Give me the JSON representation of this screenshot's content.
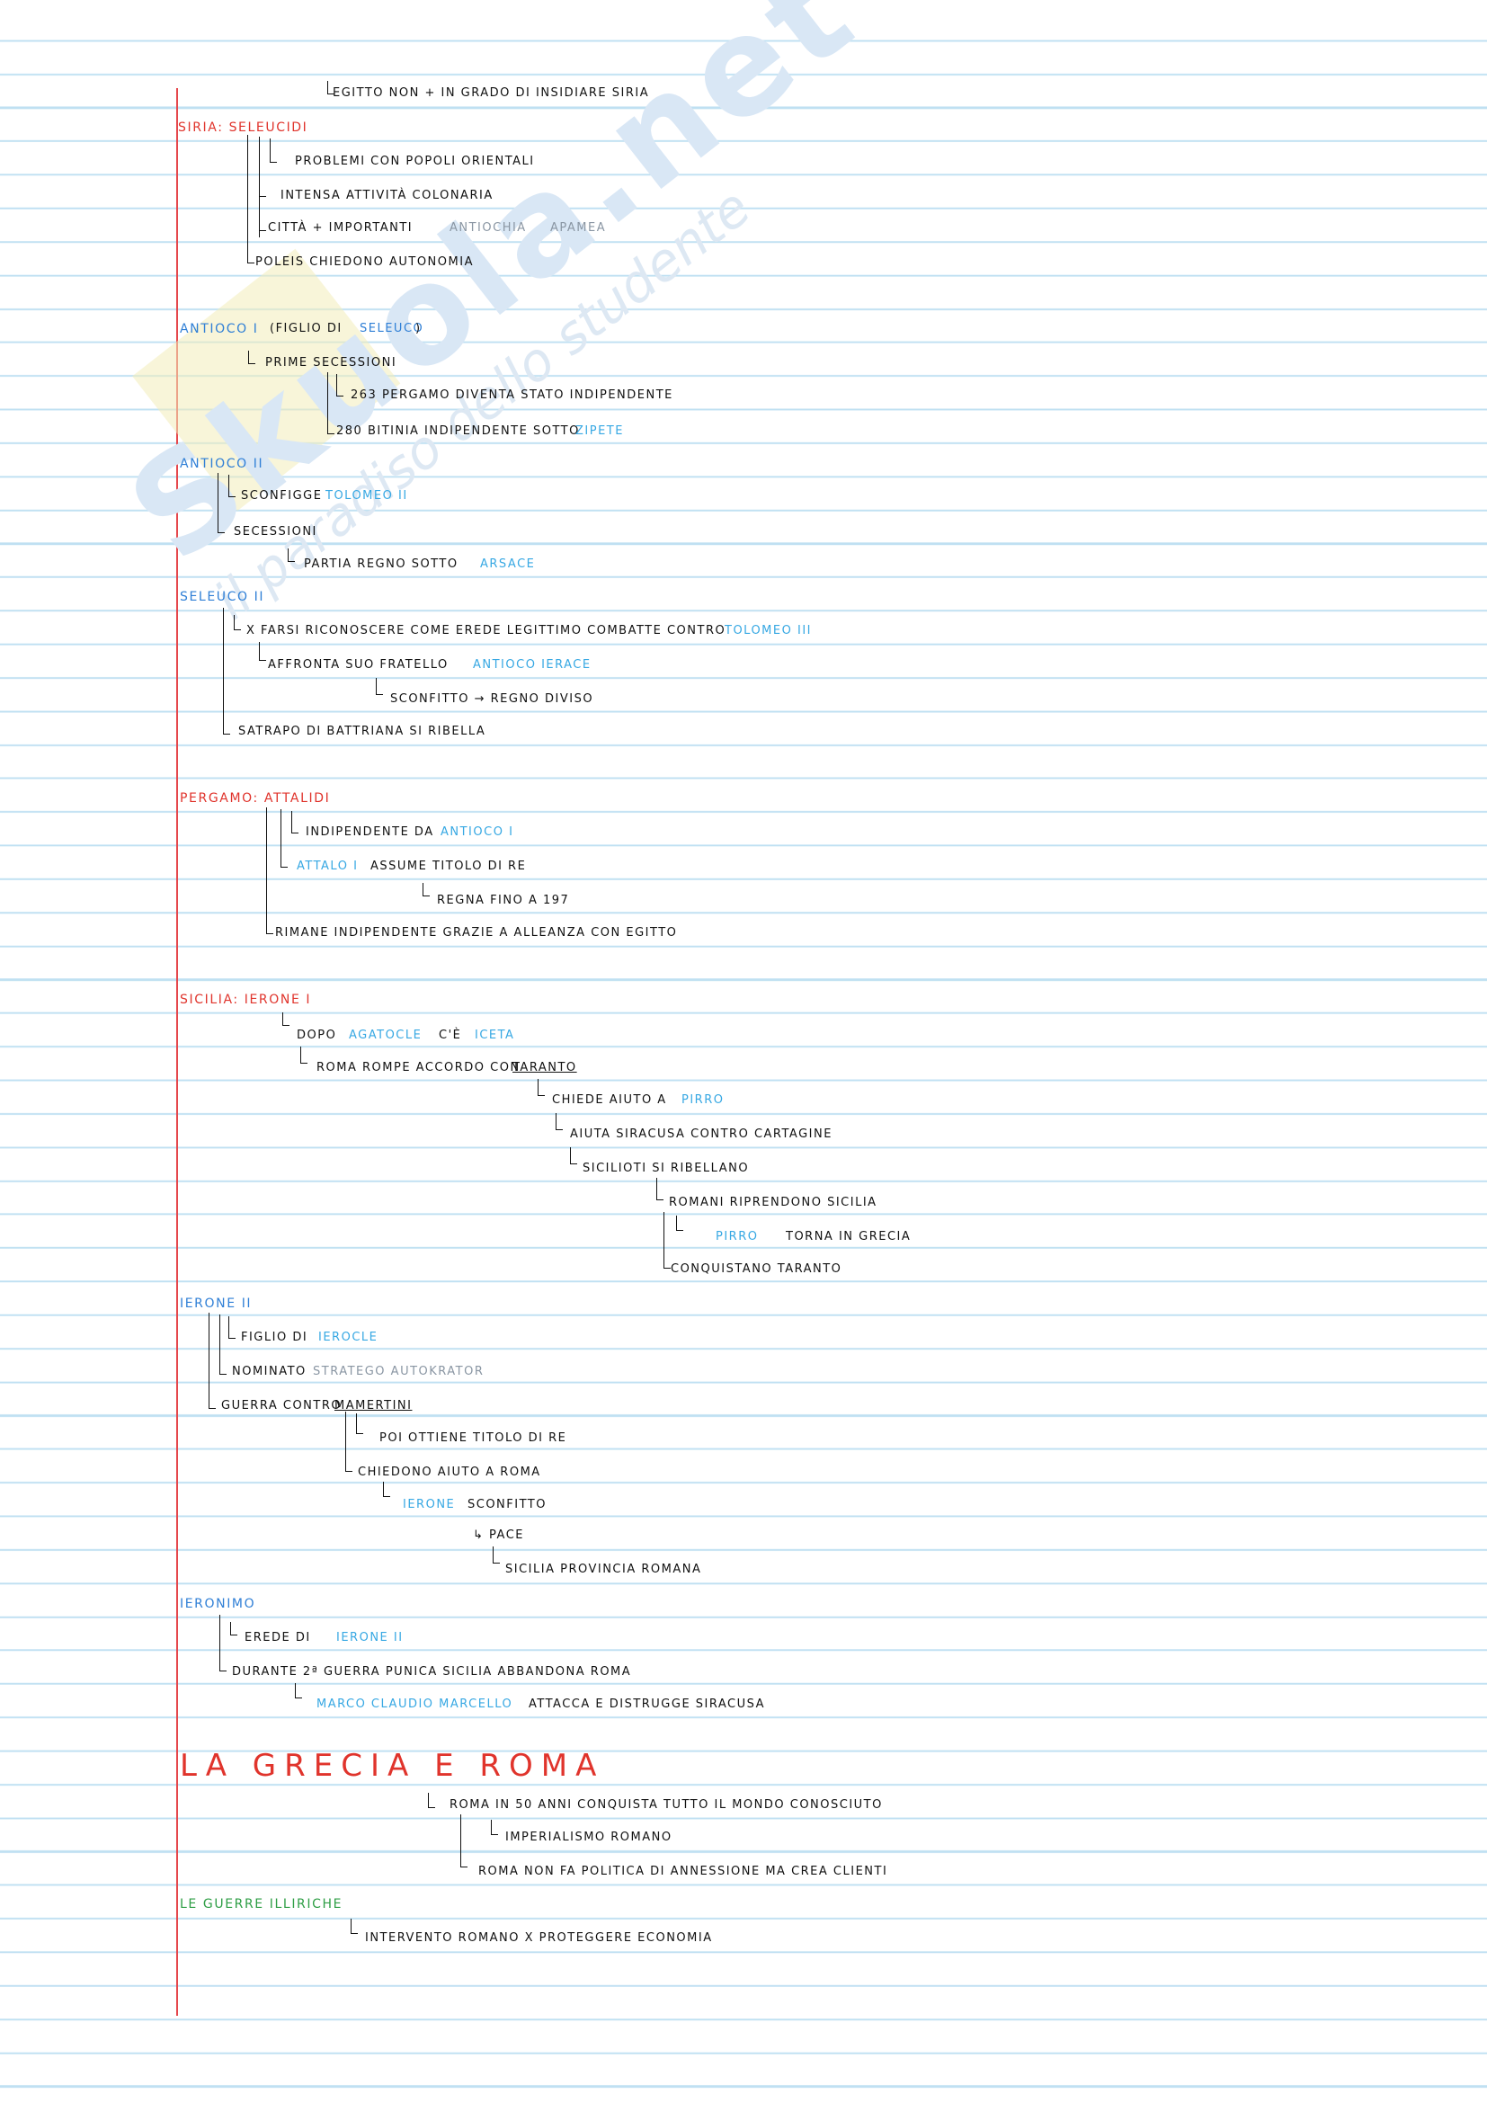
{
  "watermark": {
    "brand": "Skuola.net",
    "tagline": "il paradiso dello studente"
  },
  "l01": "egitto non + in grado di insidiare siria",
  "l02": "siria: seleucidi",
  "l03": "problemi con popoli orientali",
  "l04": "intensa attività colonaria",
  "l05a": "città + importanti",
  "l05b": "antiochia",
  "l05c": "apamea",
  "l06": "poleis chiedono autonomia",
  "l07a": "antioco i",
  "l07b": "(figlio di",
  "l07c": "seleuco",
  "l07d": ")",
  "l08": "prime secessioni",
  "l09": "263 pergamo diventa stato indipendente",
  "l10a": "280 bitinia indipendente sotto",
  "l10b": "zipete",
  "l11": "antioco ii",
  "l12a": "sconfigge",
  "l12b": "tolomeo ii",
  "l13": "secessioni",
  "l14a": "partia regno sotto",
  "l14b": "arsace",
  "l15": "seleuco ii",
  "l16a": "x farsi riconoscere come erede legittimo combatte contro",
  "l16b": "tolomeo iii",
  "l17a": "affronta suo fratello",
  "l17b": "antioco ierace",
  "l18": "sconfitto → regno diviso",
  "l19": "satrapo di battriana si ribella",
  "l20": "pergamo: attalidi",
  "l21a": "indipendente da",
  "l21b": "antioco i",
  "l22a": "attalo i",
  "l22b": "assume titolo di re",
  "l23": "regna fino a 197",
  "l24": "rimane indipendente grazie a alleanza con egitto",
  "l25": "sicilia: ierone i",
  "l26a": "dopo",
  "l26b": "agatocle",
  "l26c": "c'è",
  "l26d": "iceta",
  "l27a": "roma rompe accordo con",
  "l27b": "taranto",
  "l28a": "chiede aiuto a",
  "l28b": "pirro",
  "l29": "aiuta siracusa contro cartagine",
  "l30": "sicilioti si ribellano",
  "l31": "romani riprendono sicilia",
  "l32a": "pirro",
  "l32b": "torna in grecia",
  "l33": "conquistano taranto",
  "l34": "ierone ii",
  "l35a": "figlio di",
  "l35b": "ierocle",
  "l36a": "nominato",
  "l36b": "stratego autokrator",
  "l37a": "guerra contro",
  "l37b": "mamertini",
  "l38": "poi ottiene titolo di re",
  "l39": "chiedono aiuto a roma",
  "l40a": "ierone",
  "l40b": "sconfitto",
  "l41": "↳ pace",
  "l42": "sicilia provincia romana",
  "l43": "ieronimo",
  "l44a": "erede di",
  "l44b": "ierone ii",
  "l45": "durante 2ª guerra punica sicilia abbandona roma",
  "l46a": "marco claudio marcello",
  "l46b": "attacca e distrugge siracusa",
  "l47": "la grecia e roma",
  "l48": "roma in 50 anni conquista tutto il mondo conosciuto",
  "l49": "imperialismo romano",
  "l50": "roma non fa politica di annessione ma crea clienti",
  "l51": "le guerre illiriche",
  "l52": "intervento romano x proteggere economia"
}
